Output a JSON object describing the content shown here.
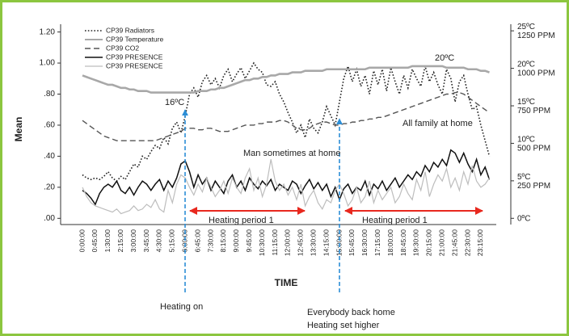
{
  "chart_data": {
    "type": "line",
    "xlabel": "TIME",
    "ylabel": "Mean",
    "legend": "upper left",
    "annotations": [
      "16ºC",
      "20ºC",
      "All family at home",
      "Man sometimes at home",
      "Heating period 1",
      "Heating period 1",
      "Heating on",
      "Everybody back home",
      "Heating set higher"
    ],
    "categories": [
      "0:00:00",
      null,
      null,
      "0:45:00",
      null,
      null,
      "1:30:00",
      null,
      null,
      "2:15:00",
      null,
      null,
      "3:00:00",
      null,
      null,
      "3:45:00",
      null,
      null,
      "4:30:00",
      null,
      null,
      "5:15:00",
      null,
      null,
      "6:00:00",
      null,
      null,
      "6:45:00",
      null,
      null,
      "7:30:00",
      null,
      null,
      "8:15:00",
      null,
      null,
      "9:00:00",
      null,
      null,
      "9:45:00",
      null,
      null,
      "10:30:00",
      null,
      null,
      "11:15:00",
      null,
      null,
      "12:00:00",
      null,
      null,
      "12:45:00",
      null,
      null,
      "13:30:00",
      null,
      null,
      "14:15:00",
      null,
      null,
      "15:00:00",
      null,
      null,
      "15:45:00",
      null,
      null,
      "16:30:00",
      null,
      null,
      "17:15:00",
      null,
      null,
      "18:00:00",
      null,
      null,
      "18:45:00",
      null,
      null,
      "19:30:00",
      null,
      null,
      "20:15:00",
      null,
      null,
      "21:00:00",
      null,
      null,
      "21:45:00",
      null,
      null,
      "22:30:00",
      null,
      null,
      "23:15:00",
      null,
      null
    ],
    "series": [
      {
        "name": "CP39 Radiators",
        "color": "#222222",
        "style": "dotted",
        "values": [
          0.28,
          0.26,
          0.25,
          0.26,
          0.25,
          0.27,
          0.3,
          0.26,
          0.24,
          0.27,
          0.25,
          0.3,
          0.35,
          0.33,
          0.4,
          0.38,
          0.43,
          0.47,
          0.45,
          0.52,
          0.48,
          0.58,
          0.62,
          0.55,
          0.66,
          0.8,
          0.84,
          0.78,
          0.88,
          0.92,
          0.86,
          0.9,
          0.84,
          0.92,
          0.96,
          0.88,
          0.93,
          0.97,
          0.9,
          0.95,
          1.0,
          0.96,
          0.94,
          0.86,
          0.85,
          0.88,
          0.8,
          0.75,
          0.68,
          0.62,
          0.55,
          0.6,
          0.52,
          0.64,
          0.58,
          0.55,
          0.62,
          0.72,
          0.66,
          0.6,
          0.75,
          0.9,
          0.98,
          0.88,
          0.96,
          0.85,
          0.92,
          0.8,
          0.95,
          0.86,
          0.96,
          0.82,
          0.97,
          0.88,
          0.8,
          0.92,
          0.84,
          0.96,
          0.9,
          0.85,
          0.98,
          0.88,
          0.94,
          0.86,
          0.8,
          0.96,
          0.9,
          0.75,
          0.88,
          0.92,
          0.8,
          0.7,
          0.72,
          0.6,
          0.5,
          0.4
        ]
      },
      {
        "name": "CP39 Temperature",
        "color": "#a8a8a8",
        "style": "solid",
        "values": [
          0.92,
          0.91,
          0.9,
          0.89,
          0.88,
          0.87,
          0.86,
          0.86,
          0.85,
          0.84,
          0.84,
          0.83,
          0.83,
          0.82,
          0.82,
          0.82,
          0.81,
          0.81,
          0.81,
          0.81,
          0.81,
          0.81,
          0.81,
          0.81,
          0.81,
          0.81,
          0.81,
          0.82,
          0.82,
          0.82,
          0.83,
          0.83,
          0.84,
          0.84,
          0.85,
          0.86,
          0.87,
          0.88,
          0.89,
          0.89,
          0.9,
          0.9,
          0.91,
          0.91,
          0.92,
          0.92,
          0.93,
          0.93,
          0.93,
          0.94,
          0.94,
          0.94,
          0.95,
          0.95,
          0.95,
          0.95,
          0.95,
          0.96,
          0.96,
          0.96,
          0.96,
          0.96,
          0.96,
          0.96,
          0.96,
          0.96,
          0.96,
          0.97,
          0.97,
          0.97,
          0.97,
          0.97,
          0.97,
          0.97,
          0.97,
          0.97,
          0.97,
          0.98,
          0.98,
          0.98,
          0.98,
          0.98,
          0.98,
          0.98,
          0.98,
          0.97,
          0.97,
          0.97,
          0.97,
          0.97,
          0.96,
          0.96,
          0.96,
          0.95,
          0.95,
          0.94
        ]
      },
      {
        "name": "CP39 CO2",
        "color": "#555555",
        "style": "dashed",
        "values": [
          0.63,
          0.61,
          0.59,
          0.57,
          0.55,
          0.53,
          0.52,
          0.51,
          0.5,
          0.5,
          0.5,
          0.5,
          0.5,
          0.5,
          0.5,
          0.5,
          0.5,
          0.5,
          0.51,
          0.52,
          0.53,
          0.54,
          0.55,
          0.56,
          0.58,
          0.58,
          0.58,
          0.57,
          0.57,
          0.58,
          0.58,
          0.57,
          0.56,
          0.56,
          0.56,
          0.57,
          0.58,
          0.59,
          0.6,
          0.6,
          0.6,
          0.61,
          0.61,
          0.62,
          0.62,
          0.62,
          0.63,
          0.63,
          0.62,
          0.6,
          0.58,
          0.57,
          0.57,
          0.58,
          0.6,
          0.61,
          0.62,
          0.62,
          0.61,
          0.6,
          0.6,
          0.61,
          0.61,
          0.62,
          0.62,
          0.63,
          0.63,
          0.64,
          0.64,
          0.65,
          0.65,
          0.66,
          0.67,
          0.68,
          0.69,
          0.7,
          0.71,
          0.72,
          0.73,
          0.74,
          0.75,
          0.76,
          0.77,
          0.78,
          0.79,
          0.8,
          0.8,
          0.81,
          0.81,
          0.8,
          0.78,
          0.76,
          0.74,
          0.72,
          0.7,
          0.68
        ]
      },
      {
        "name": "CP39 PRESENCE",
        "color": "#111111",
        "style": "solid",
        "values": [
          0.18,
          0.16,
          0.13,
          0.09,
          0.16,
          0.2,
          0.22,
          0.2,
          0.24,
          0.18,
          0.16,
          0.2,
          0.15,
          0.2,
          0.24,
          0.22,
          0.18,
          0.22,
          0.25,
          0.18,
          0.24,
          0.2,
          0.26,
          0.35,
          0.37,
          0.3,
          0.2,
          0.28,
          0.22,
          0.26,
          0.18,
          0.24,
          0.2,
          0.16,
          0.24,
          0.28,
          0.2,
          0.24,
          0.18,
          0.26,
          0.22,
          0.19,
          0.24,
          0.21,
          0.25,
          0.18,
          0.22,
          0.2,
          0.18,
          0.24,
          0.22,
          0.16,
          0.21,
          0.25,
          0.19,
          0.23,
          0.18,
          0.22,
          0.14,
          0.2,
          0.12,
          0.19,
          0.22,
          0.16,
          0.2,
          0.18,
          0.24,
          0.15,
          0.22,
          0.19,
          0.24,
          0.18,
          0.22,
          0.26,
          0.2,
          0.24,
          0.28,
          0.25,
          0.3,
          0.27,
          0.34,
          0.3,
          0.36,
          0.33,
          0.38,
          0.34,
          0.44,
          0.42,
          0.36,
          0.42,
          0.35,
          0.3,
          0.38,
          0.28,
          0.33,
          0.25
        ]
      },
      {
        "name": "CP39 PRESENCE",
        "color": "#bdbdbd",
        "style": "solid",
        "values": [
          0.2,
          0.14,
          0.1,
          0.08,
          0.07,
          0.06,
          0.05,
          0.04,
          0.06,
          0.03,
          0.04,
          0.05,
          0.08,
          0.05,
          0.06,
          0.09,
          0.07,
          0.12,
          0.06,
          0.04,
          0.18,
          0.1,
          0.22,
          0.28,
          0.26,
          0.2,
          0.15,
          0.22,
          0.17,
          0.26,
          0.2,
          0.14,
          0.18,
          0.24,
          0.16,
          0.26,
          0.2,
          0.16,
          0.26,
          0.32,
          0.18,
          0.26,
          0.14,
          0.22,
          0.38,
          0.24,
          0.18,
          0.22,
          0.15,
          0.2,
          0.12,
          0.22,
          0.08,
          0.14,
          0.18,
          0.1,
          0.06,
          0.12,
          0.1,
          0.18,
          0.22,
          0.16,
          0.08,
          0.12,
          0.2,
          0.1,
          0.14,
          0.24,
          0.1,
          0.18,
          0.12,
          0.16,
          0.2,
          0.1,
          0.14,
          0.22,
          0.16,
          0.12,
          0.25,
          0.18,
          0.3,
          0.14,
          0.22,
          0.28,
          0.24,
          0.32,
          0.2,
          0.26,
          0.18,
          0.3,
          0.22,
          0.34,
          0.24,
          0.2,
          0.22,
          0.26
        ]
      }
    ],
    "ylim": [
      -0.04,
      1.25
    ],
    "yticks": [
      {
        "value": 0,
        "label": ".00"
      },
      {
        "value": 0.2,
        "label": ".20"
      },
      {
        "value": 0.4,
        "label": ".40"
      },
      {
        "value": 0.6,
        "label": ".60"
      },
      {
        "value": 0.8,
        "label": ".80"
      },
      {
        "value": 1,
        "label": "1.00"
      },
      {
        "value": 1.2,
        "label": "1.20"
      }
    ],
    "y2lim": [
      -0.83,
      25.88
    ],
    "y2ticks": [
      {
        "value": 0,
        "label": "0ºC"
      },
      {
        "value": 5,
        "label": "5ºC\n250 PPM"
      },
      {
        "value": 10,
        "label": "10ºC\n500 PPM"
      },
      {
        "value": 15,
        "label": "15ºC\n750 PPM"
      },
      {
        "value": 20,
        "label": "20ºC\n1000 PPM"
      },
      {
        "value": 25,
        "label": "25ºC\n1250 PPM"
      }
    ]
  }
}
